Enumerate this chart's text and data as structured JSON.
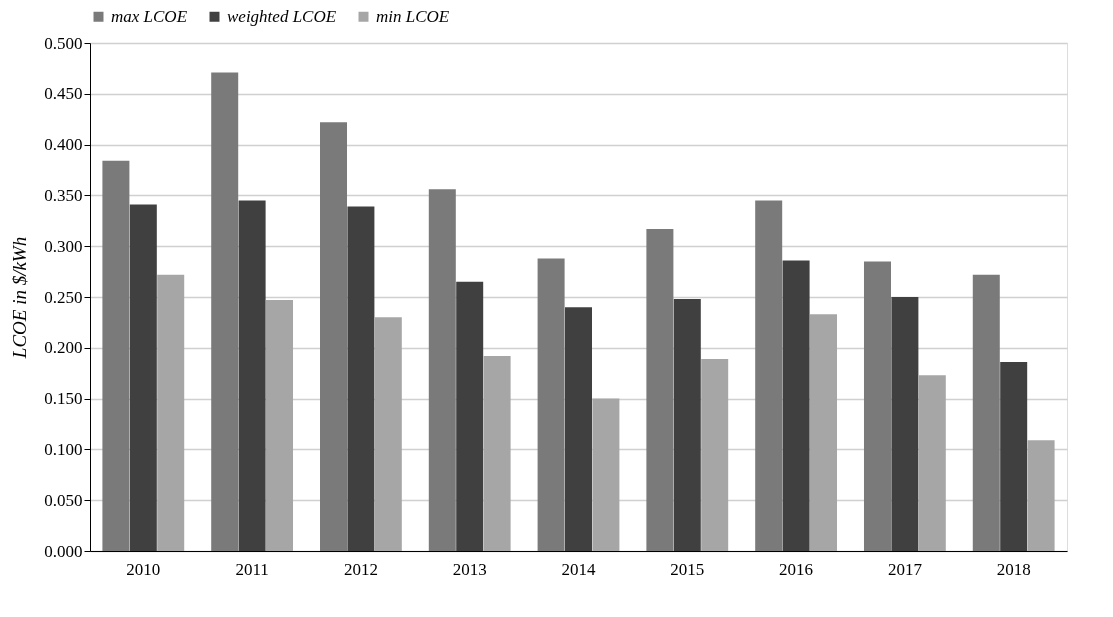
{
  "chart_data": {
    "type": "bar",
    "ylabel": "LCOE in $/kWh",
    "categories": [
      "2010",
      "2011",
      "2012",
      "2013",
      "2014",
      "2015",
      "2016",
      "2017",
      "2018"
    ],
    "series": [
      {
        "name": "max LCOE",
        "color": "#7a7a7a",
        "values": [
          0.384,
          0.471,
          0.422,
          0.356,
          0.288,
          0.317,
          0.345,
          0.285,
          0.272
        ]
      },
      {
        "name": "weighted LCOE",
        "color": "#404040",
        "values": [
          0.341,
          0.345,
          0.339,
          0.265,
          0.24,
          0.248,
          0.286,
          0.25,
          0.186
        ]
      },
      {
        "name": "min LCOE",
        "color": "#a6a6a6",
        "values": [
          0.272,
          0.247,
          0.23,
          0.192,
          0.15,
          0.189,
          0.233,
          0.173,
          0.109
        ]
      }
    ],
    "ylim": [
      0,
      0.5
    ],
    "yticks": [
      {
        "value": 0,
        "label": "0.000"
      },
      {
        "value": 0.05,
        "label": "0.050"
      },
      {
        "value": 0.1,
        "label": "0.100"
      },
      {
        "value": 0.15,
        "label": "0.150"
      },
      {
        "value": 0.2,
        "label": "0.200"
      },
      {
        "value": 0.25,
        "label": "0.250"
      },
      {
        "value": 0.3,
        "label": "0.300"
      },
      {
        "value": 0.35,
        "label": "0.350"
      },
      {
        "value": 0.4,
        "label": "0.400"
      },
      {
        "value": 0.45,
        "label": "0.450"
      },
      {
        "value": 0.5,
        "label": "0.500"
      }
    ],
    "grid": "y",
    "legend": "top"
  }
}
